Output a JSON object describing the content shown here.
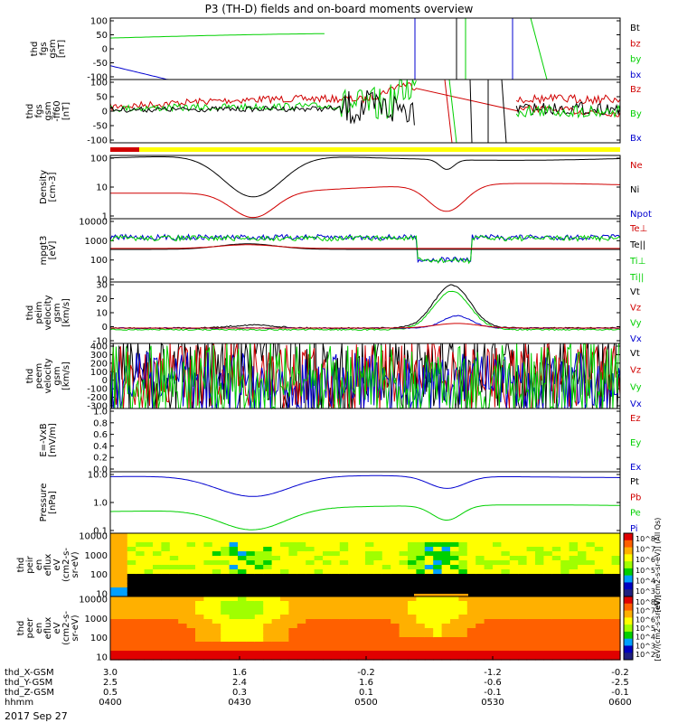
{
  "title": "P3 (TH-D) fields and on-board moments overview",
  "date_label": "2017 Sep 27",
  "colors": {
    "black": "#000000",
    "red": "#d00000",
    "green": "#00d000",
    "blue": "#0000d0",
    "yellow": "#ffff00",
    "orange": "#ffa000"
  },
  "chart_data": [
    {
      "type": "line",
      "ylabel": [
        "thd",
        "fgs",
        "gsm",
        "[nT]"
      ],
      "yticks": [
        "100",
        "50",
        "0",
        "-50",
        "-100"
      ],
      "ylim": [
        -100,
        100
      ],
      "legend": [
        {
          "label": "Bt",
          "color": "#000000"
        },
        {
          "label": "bz",
          "color": "#d00000"
        },
        {
          "label": "by",
          "color": "#00d000"
        },
        {
          "label": "bx",
          "color": "#0000d0"
        }
      ]
    },
    {
      "type": "line",
      "ylabel": [
        "thd",
        "fgs",
        "gsm",
        "-ff60",
        "[nT]"
      ],
      "yticks": [
        "100",
        "50",
        "0",
        "-50",
        "-100"
      ],
      "ylim": [
        -120,
        110
      ],
      "legend": [
        {
          "label": "Bz",
          "color": "#d00000"
        },
        {
          "label": "By",
          "color": "#00d000"
        },
        {
          "label": "Bx",
          "color": "#0000d0"
        }
      ]
    },
    {
      "type": "line",
      "ylabel": [
        "Density",
        "[cm-3]"
      ],
      "yticks": [
        "100",
        "10",
        "1"
      ],
      "scale": "log",
      "legend": [
        {
          "label": "Ne",
          "color": "#d00000"
        },
        {
          "label": "Ni",
          "color": "#000000"
        },
        {
          "label": "Npot",
          "color": "#0000d0"
        }
      ]
    },
    {
      "type": "line",
      "ylabel": [
        "mpgt3",
        "[eV]"
      ],
      "yticks": [
        "10000",
        "1000",
        "100",
        "10"
      ],
      "scale": "log",
      "legend": [
        {
          "label": "Te⊥",
          "color": "#d00000"
        },
        {
          "label": "Te||",
          "color": "#000000"
        },
        {
          "label": "Ti⊥",
          "color": "#00d000"
        },
        {
          "label": "Ti||",
          "color": "#00d000"
        }
      ]
    },
    {
      "type": "line",
      "ylabel": [
        "thd",
        "peim",
        "velocity",
        "gsm",
        "[km/s]"
      ],
      "yticks": [
        "30",
        "20",
        "10",
        "0",
        "-10"
      ],
      "ylim": [
        -10,
        30
      ],
      "legend": [
        {
          "label": "Vt",
          "color": "#000000"
        },
        {
          "label": "Vz",
          "color": "#d00000"
        },
        {
          "label": "Vy",
          "color": "#00d000"
        },
        {
          "label": "Vx",
          "color": "#0000d0"
        }
      ]
    },
    {
      "type": "line",
      "ylabel": [
        "thd",
        "peem",
        "velocity",
        "gsm",
        "[km/s]"
      ],
      "yticks": [
        "400",
        "300",
        "200",
        "100",
        "0",
        "-100",
        "-200",
        "-300"
      ],
      "ylim": [
        -300,
        400
      ],
      "legend": [
        {
          "label": "Vt",
          "color": "#000000"
        },
        {
          "label": "Vz",
          "color": "#d00000"
        },
        {
          "label": "Vy",
          "color": "#00d000"
        },
        {
          "label": "Vx",
          "color": "#0000d0"
        }
      ]
    },
    {
      "type": "line",
      "ylabel": [
        "E=-VxB",
        "[mV/m]"
      ],
      "yticks": [
        "1.0",
        "0.8",
        "0.6",
        "0.4",
        "0.2",
        "0.0"
      ],
      "ylim": [
        0,
        1
      ],
      "legend": [
        {
          "label": "Ez",
          "color": "#d00000"
        },
        {
          "label": "Ey",
          "color": "#00d000"
        },
        {
          "label": "Ex",
          "color": "#0000d0"
        }
      ]
    },
    {
      "type": "line",
      "ylabel": [
        "Pressure",
        "[nPa]"
      ],
      "yticks": [
        "10.0",
        "1.0",
        "0.1"
      ],
      "scale": "log",
      "legend": [
        {
          "label": "Pt",
          "color": "#000000"
        },
        {
          "label": "Pb",
          "color": "#d00000"
        },
        {
          "label": "Pe",
          "color": "#00d000"
        },
        {
          "label": "Pi",
          "color": "#0000d0"
        }
      ]
    },
    {
      "type": "heatmap",
      "ylabel": [
        "thd",
        "peir",
        "en",
        "eflux",
        "eV",
        "(cm2-s-",
        "sr-eV)"
      ],
      "yticks": [
        "10000",
        "1000",
        "100",
        "10"
      ],
      "scale": "log",
      "colorbar": {
        "ticks": [
          "10^8",
          "10^7",
          "10^6",
          "10^5",
          "10^4",
          "10^3"
        ],
        "label": "[eV/(cm2-s-sr-eV)] (All Qs)"
      }
    },
    {
      "type": "heatmap",
      "ylabel": [
        "thd",
        "peer",
        "en",
        "eflux",
        "eV",
        "(cm2-s-",
        "sr-eV)"
      ],
      "yticks": [
        "10000",
        "1000",
        "100",
        "10"
      ],
      "scale": "log",
      "colorbar": {
        "ticks": [
          "10^8",
          "10^7",
          "10^6",
          "10^5",
          "10^4",
          "10^3",
          "10^2"
        ],
        "label": "[eV/(cm2-s-sr-eV)]"
      }
    }
  ],
  "xaxis": {
    "rows": [
      {
        "label": "thd_X-GSM",
        "values": [
          "3.0",
          "1.6",
          "-0.2",
          "-1.2",
          "-0.2"
        ]
      },
      {
        "label": "thd_Y-GSM",
        "values": [
          "2.5",
          "2.4",
          "1.6",
          "-0.6",
          "-2.5"
        ]
      },
      {
        "label": "thd_Z-GSM",
        "values": [
          "0.5",
          "0.3",
          "0.1",
          "-0.1",
          "-0.1"
        ]
      },
      {
        "label": "hhmm",
        "values": [
          "0400",
          "0430",
          "0500",
          "0530",
          "0600"
        ]
      }
    ]
  }
}
